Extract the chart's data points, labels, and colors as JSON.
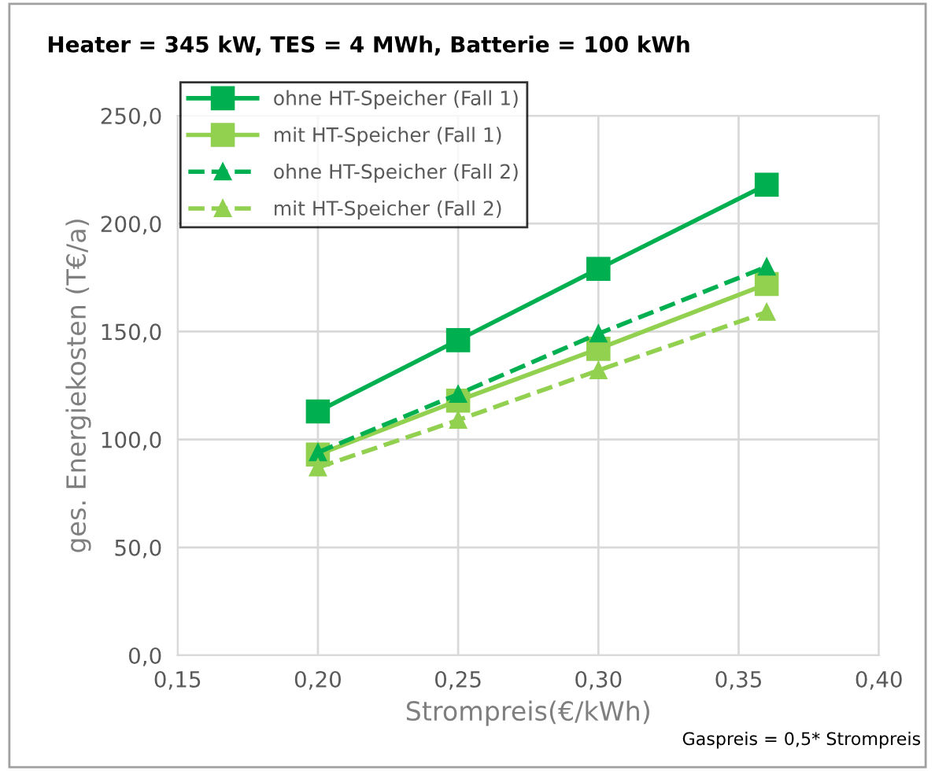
{
  "chart_data": {
    "type": "line",
    "title": "Heater = 345 kW, TES = 4 MWh, Batterie = 100 kWh",
    "xlabel": "Strompreis(€/kWh)",
    "ylabel": "ges. Energiekosten (T€/a)",
    "annotations": [
      "Gaspreis = 0,5* Strompreis"
    ],
    "x": [
      0.2,
      0.25,
      0.3,
      0.36
    ],
    "series": [
      {
        "name": "ohne HT-Speicher (Fall 1)",
        "color": "#00b050",
        "marker": "square",
        "line_style": "solid",
        "values": [
          113,
          146,
          179,
          218
        ]
      },
      {
        "name": "mit HT-Speicher (Fall 1)",
        "color": "#92d050",
        "marker": "square",
        "line_style": "solid",
        "values": [
          93,
          118,
          142,
          172
        ]
      },
      {
        "name": "ohne HT-Speicher (Fall 2)",
        "color": "#00b050",
        "marker": "triangle",
        "line_style": "dashed",
        "values": [
          94,
          121,
          149,
          180
        ]
      },
      {
        "name": "mit HT-Speicher (Fall 2)",
        "color": "#92d050",
        "marker": "triangle",
        "line_style": "dashed",
        "values": [
          87,
          109,
          132,
          159
        ]
      }
    ],
    "xlim": [
      0.15,
      0.4
    ],
    "xticks": [
      {
        "value": 0.15,
        "label": "0,15"
      },
      {
        "value": 0.2,
        "label": "0,20"
      },
      {
        "value": 0.25,
        "label": "0,25"
      },
      {
        "value": 0.3,
        "label": "0,30"
      },
      {
        "value": 0.35,
        "label": "0,35"
      },
      {
        "value": 0.4,
        "label": "0,40"
      }
    ],
    "ylim": [
      0,
      250
    ],
    "yticks": [
      {
        "value": 0,
        "label": "0,0"
      },
      {
        "value": 50,
        "label": "50,0"
      },
      {
        "value": 100,
        "label": "100,0"
      },
      {
        "value": 150,
        "label": "150,0"
      },
      {
        "value": 200,
        "label": "200,0"
      },
      {
        "value": 250,
        "label": "250,0"
      }
    ],
    "grid": true,
    "legend": "top left"
  }
}
